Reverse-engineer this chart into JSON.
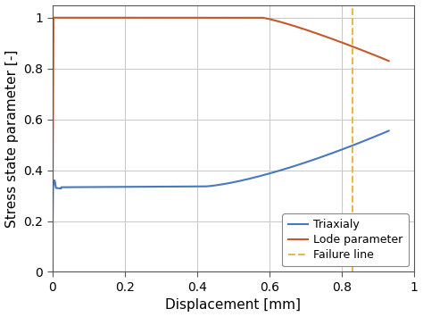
{
  "xlabel": "Displacement [mm]",
  "ylabel": "Stress state parameter [-]",
  "xlim": [
    0,
    1
  ],
  "ylim": [
    0,
    1.05
  ],
  "xticks": [
    0,
    0.2,
    0.4,
    0.6,
    0.8,
    1.0
  ],
  "yticks": [
    0,
    0.2,
    0.4,
    0.6,
    0.8,
    1.0
  ],
  "failure_line_x": 0.83,
  "failure_line_color": "#E8B84B",
  "triaxialy_color": "#4878BE",
  "lode_color": "#C45A2A",
  "legend_labels": [
    "Triaxialy",
    "Lode parameter",
    "Failure line"
  ],
  "background_color": "#ffffff",
  "grid_color": "#c8c8c8",
  "xlabel_fontsize": 11,
  "ylabel_fontsize": 11,
  "tick_fontsize": 10,
  "legend_fontsize": 9,
  "linewidth": 1.5
}
